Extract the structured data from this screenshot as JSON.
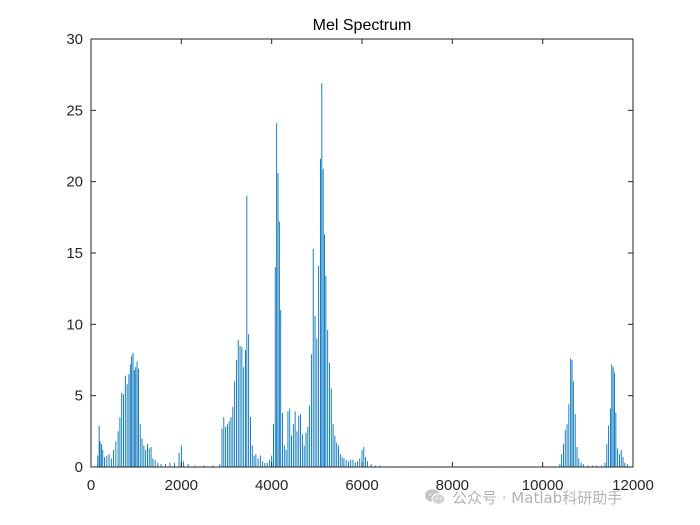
{
  "chart_data": {
    "type": "bar",
    "title": "Mel Spectrum",
    "xlabel": "",
    "ylabel": "",
    "xlim": [
      0,
      12000
    ],
    "ylim": [
      0,
      30
    ],
    "x_ticks": [
      0,
      2000,
      4000,
      6000,
      8000,
      10000,
      12000
    ],
    "y_ticks": [
      0,
      5,
      10,
      15,
      20,
      25,
      30
    ],
    "grid": false,
    "bar_color": "#0072BD",
    "bars": [
      [
        150,
        0.8
      ],
      [
        180,
        2.9
      ],
      [
        200,
        1.8
      ],
      [
        230,
        1.6
      ],
      [
        260,
        1.2
      ],
      [
        300,
        0.7
      ],
      [
        350,
        0.8
      ],
      [
        400,
        0.9
      ],
      [
        450,
        0.6
      ],
      [
        500,
        1.2
      ],
      [
        550,
        1.8
      ],
      [
        600,
        2.5
      ],
      [
        640,
        3.5
      ],
      [
        680,
        5.2
      ],
      [
        720,
        5.1
      ],
      [
        760,
        6.4
      ],
      [
        800,
        5.8
      ],
      [
        840,
        6.5
      ],
      [
        870,
        7.2
      ],
      [
        900,
        7.8
      ],
      [
        930,
        8.0
      ],
      [
        960,
        6.8
      ],
      [
        990,
        7.0
      ],
      [
        1020,
        7.4
      ],
      [
        1050,
        6.9
      ],
      [
        1090,
        3.0
      ],
      [
        1130,
        2.0
      ],
      [
        1170,
        1.5
      ],
      [
        1210,
        1.2
      ],
      [
        1250,
        1.6
      ],
      [
        1290,
        1.3
      ],
      [
        1330,
        1.4
      ],
      [
        1370,
        0.6
      ],
      [
        1420,
        0.5
      ],
      [
        1480,
        0.3
      ],
      [
        1550,
        0.2
      ],
      [
        1650,
        0.2
      ],
      [
        1750,
        0.3
      ],
      [
        1850,
        0.3
      ],
      [
        1950,
        1.0
      ],
      [
        2000,
        1.5
      ],
      [
        2050,
        0.4
      ],
      [
        2150,
        0.2
      ],
      [
        2300,
        0.1
      ],
      [
        2500,
        0.1
      ],
      [
        2700,
        0.1
      ],
      [
        2850,
        0.2
      ],
      [
        2900,
        2.7
      ],
      [
        2940,
        3.5
      ],
      [
        2980,
        2.8
      ],
      [
        3020,
        3.0
      ],
      [
        3060,
        3.2
      ],
      [
        3100,
        3.5
      ],
      [
        3140,
        4.2
      ],
      [
        3180,
        6.0
      ],
      [
        3220,
        7.5
      ],
      [
        3260,
        8.9
      ],
      [
        3300,
        8.5
      ],
      [
        3340,
        8.4
      ],
      [
        3380,
        7.0
      ],
      [
        3420,
        8.2
      ],
      [
        3450,
        19.0
      ],
      [
        3490,
        9.3
      ],
      [
        3530,
        3.5
      ],
      [
        3570,
        1.5
      ],
      [
        3610,
        0.8
      ],
      [
        3650,
        0.9
      ],
      [
        3700,
        0.6
      ],
      [
        3750,
        0.8
      ],
      [
        3800,
        0.4
      ],
      [
        3850,
        0.3
      ],
      [
        3900,
        0.3
      ],
      [
        3950,
        0.5
      ],
      [
        4000,
        0.8
      ],
      [
        4040,
        3.0
      ],
      [
        4080,
        14.0
      ],
      [
        4110,
        24.1
      ],
      [
        4140,
        20.6
      ],
      [
        4170,
        17.2
      ],
      [
        4200,
        11.0
      ],
      [
        4240,
        3.8
      ],
      [
        4280,
        1.5
      ],
      [
        4320,
        1.2
      ],
      [
        4360,
        3.9
      ],
      [
        4400,
        4.1
      ],
      [
        4440,
        2.2
      ],
      [
        4480,
        3.0
      ],
      [
        4520,
        3.9
      ],
      [
        4560,
        2.5
      ],
      [
        4600,
        3.6
      ],
      [
        4640,
        3.7
      ],
      [
        4680,
        2.3
      ],
      [
        4720,
        1.5
      ],
      [
        4760,
        2.4
      ],
      [
        4800,
        2.8
      ],
      [
        4840,
        4.3
      ],
      [
        4880,
        7.9
      ],
      [
        4920,
        15.3
      ],
      [
        4960,
        10.6
      ],
      [
        5000,
        9.0
      ],
      [
        5040,
        14.1
      ],
      [
        5080,
        21.6
      ],
      [
        5110,
        26.9
      ],
      [
        5140,
        20.9
      ],
      [
        5170,
        16.3
      ],
      [
        5200,
        13.4
      ],
      [
        5240,
        9.6
      ],
      [
        5280,
        7.3
      ],
      [
        5320,
        5.5
      ],
      [
        5360,
        3.0
      ],
      [
        5400,
        2.2
      ],
      [
        5440,
        1.7
      ],
      [
        5480,
        1.5
      ],
      [
        5520,
        0.9
      ],
      [
        5560,
        0.7
      ],
      [
        5600,
        0.6
      ],
      [
        5650,
        0.5
      ],
      [
        5700,
        0.4
      ],
      [
        5750,
        0.5
      ],
      [
        5800,
        0.5
      ],
      [
        5850,
        0.3
      ],
      [
        5900,
        0.4
      ],
      [
        5950,
        0.6
      ],
      [
        6000,
        1.2
      ],
      [
        6040,
        1.4
      ],
      [
        6080,
        0.7
      ],
      [
        6120,
        0.4
      ],
      [
        6200,
        0.2
      ],
      [
        6300,
        0.1
      ],
      [
        6400,
        0.1
      ],
      [
        6600,
        0.05
      ],
      [
        7000,
        0.05
      ],
      [
        7500,
        0.05
      ],
      [
        8000,
        0.05
      ],
      [
        8500,
        0.05
      ],
      [
        9000,
        0.05
      ],
      [
        9500,
        0.05
      ],
      [
        10000,
        0.05
      ],
      [
        10380,
        0.2
      ],
      [
        10420,
        0.9
      ],
      [
        10460,
        1.6
      ],
      [
        10500,
        2.6
      ],
      [
        10540,
        3.0
      ],
      [
        10580,
        4.4
      ],
      [
        10620,
        7.6
      ],
      [
        10650,
        7.5
      ],
      [
        10680,
        6.0
      ],
      [
        10720,
        3.7
      ],
      [
        10760,
        1.4
      ],
      [
        10800,
        0.6
      ],
      [
        10850,
        0.3
      ],
      [
        10900,
        0.2
      ],
      [
        11000,
        0.1
      ],
      [
        11100,
        0.1
      ],
      [
        11200,
        0.1
      ],
      [
        11300,
        0.1
      ],
      [
        11380,
        0.3
      ],
      [
        11420,
        1.6
      ],
      [
        11460,
        2.9
      ],
      [
        11500,
        4.1
      ],
      [
        11530,
        7.2
      ],
      [
        11560,
        7.0
      ],
      [
        11590,
        6.6
      ],
      [
        11620,
        3.8
      ],
      [
        11660,
        1.3
      ],
      [
        11700,
        0.9
      ],
      [
        11740,
        1.2
      ],
      [
        11780,
        0.7
      ],
      [
        11820,
        0.3
      ],
      [
        11880,
        0.2
      ]
    ]
  },
  "watermark": {
    "icon": "wechat-icon",
    "text": "公众号 · Matlab科研助手"
  }
}
